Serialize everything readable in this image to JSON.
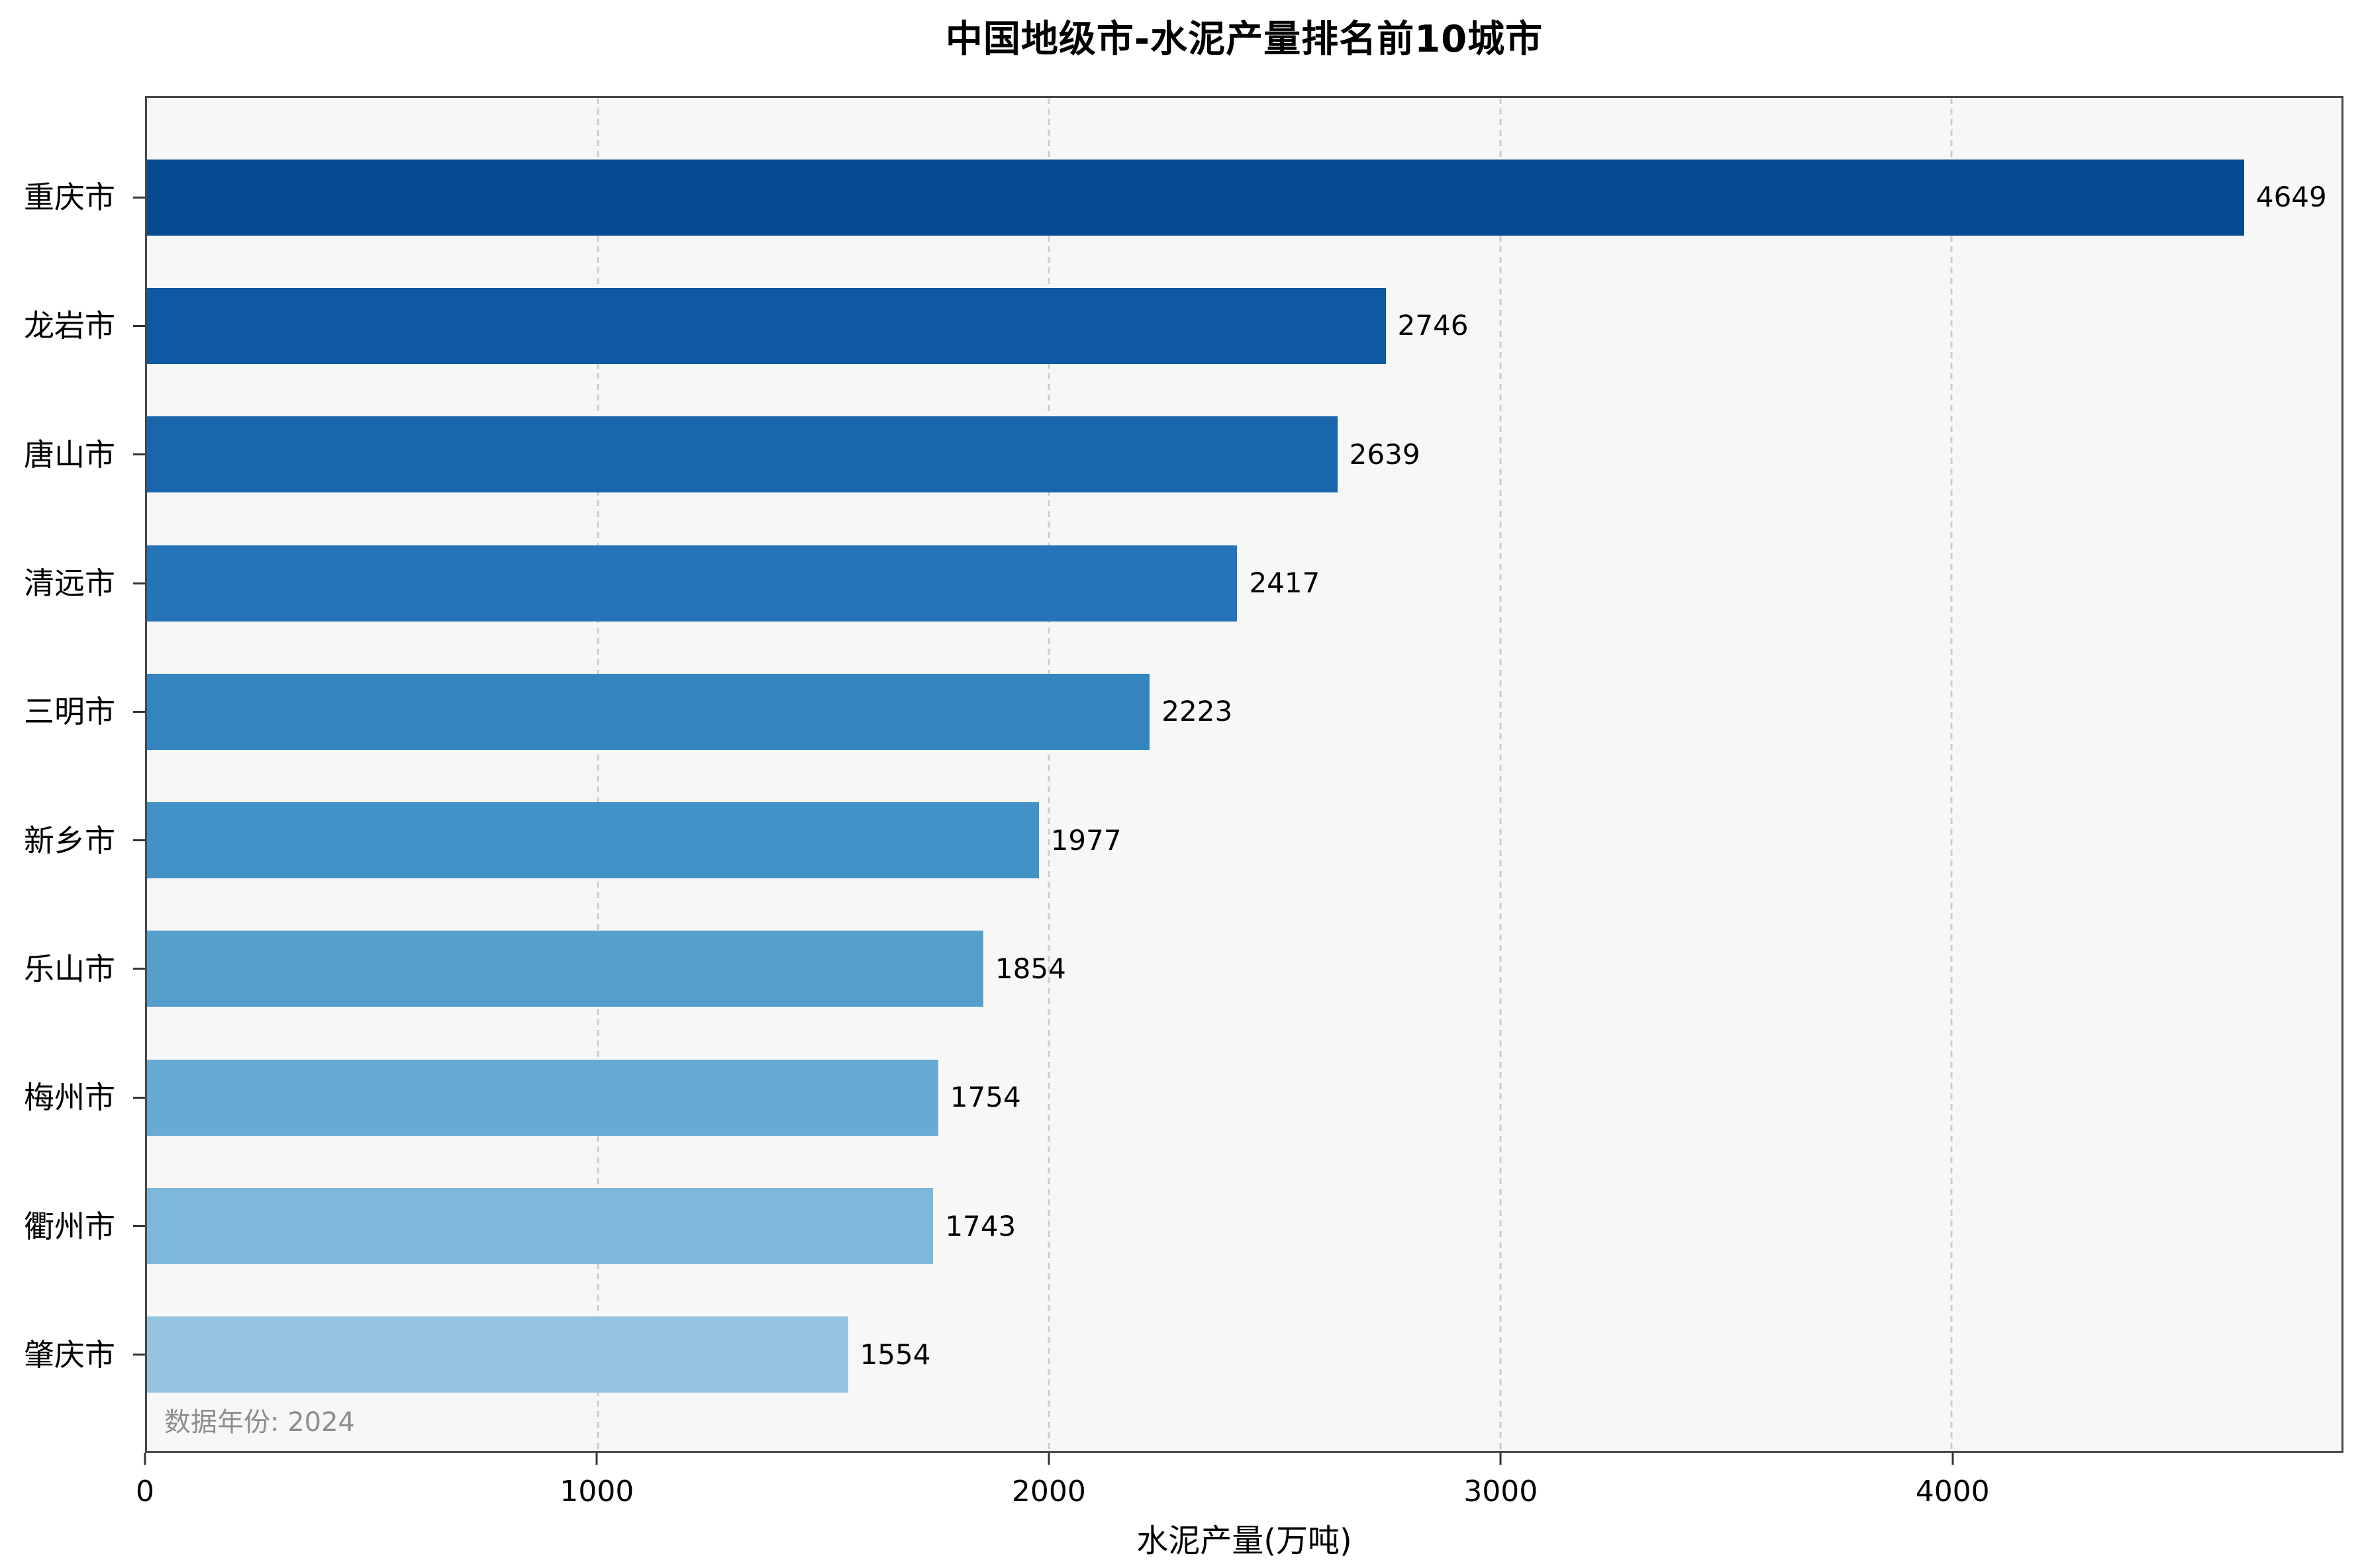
{
  "chart_data": {
    "type": "bar",
    "orientation": "horizontal",
    "title": "中国地级市-水泥产量排名前10城市",
    "xlabel": "水泥产量(万吨)",
    "annotation": "数据年份: 2024",
    "categories": [
      "重庆市",
      "龙岩市",
      "唐山市",
      "清远市",
      "三明市",
      "新乡市",
      "乐山市",
      "梅州市",
      "衢州市",
      "肇庆市"
    ],
    "values": [
      4649,
      2746,
      2639,
      2417,
      2223,
      1977,
      1854,
      1754,
      1743,
      1554
    ],
    "x_ticks": [
      0,
      1000,
      2000,
      3000,
      4000
    ],
    "xlim": [
      0,
      4865
    ],
    "grid": "vertical dashed gridlines at each 1000, legend none",
    "bar_colors": [
      "#084a92",
      "#0e59a2",
      "#1966ad",
      "#2574b7",
      "#3484bf",
      "#4292c6",
      "#559fcd",
      "#67abd5",
      "#7db8da",
      "#94c4df"
    ],
    "colors": {
      "figure_background": "#ffffff",
      "plot_background": "#f7f7f7",
      "spine": "#484848",
      "gridline": "#cdcdcd",
      "tick_mark": "#333333",
      "text": "#000000",
      "annotation_text": "#8e8e8e"
    }
  }
}
